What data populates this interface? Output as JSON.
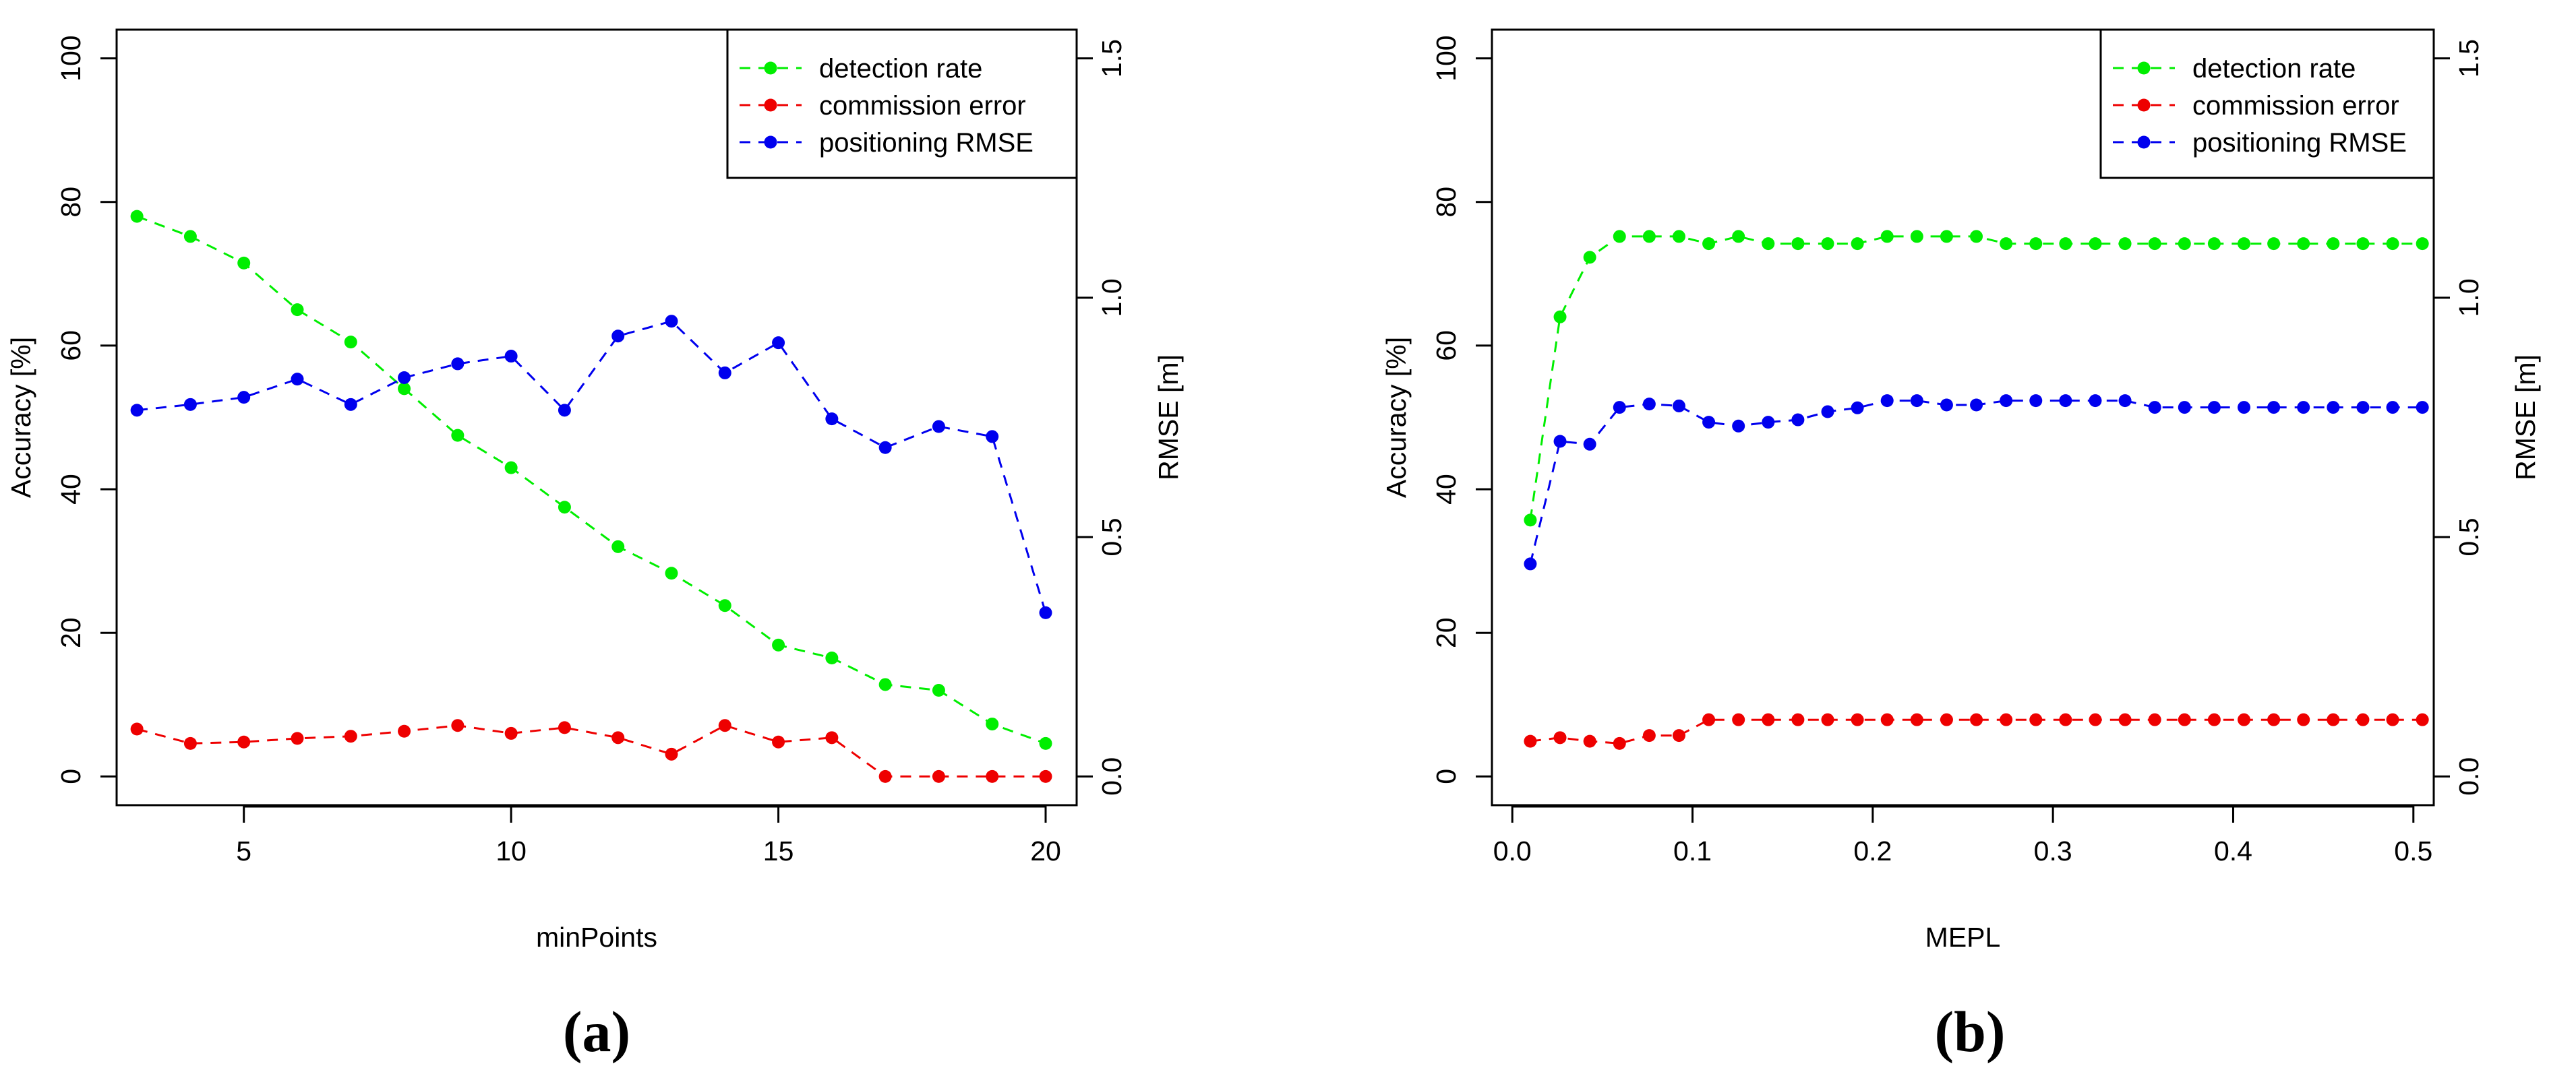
{
  "colors": {
    "detection": "#00ee00",
    "commission": "#ee0000",
    "rmse": "#0000ee"
  },
  "chart_data": [
    {
      "type": "line",
      "panel_label": "(a)",
      "xlabel": "minPoints",
      "ylabel": "Accuracy [%]",
      "y2label": "RMSE [m]",
      "xlim": [
        2.62,
        20.58
      ],
      "ylim": [
        -4,
        104
      ],
      "y2lim": [
        -0.06,
        1.56
      ],
      "xticks": [
        5,
        10,
        15,
        20
      ],
      "xtick_labels": [
        "5",
        "10",
        "15",
        "20"
      ],
      "yticks": [
        0,
        20,
        40,
        60,
        80,
        100
      ],
      "ytick_labels": [
        "0",
        "20",
        "40",
        "60",
        "80",
        "100"
      ],
      "y2ticks": [
        0,
        0.5,
        1,
        1.5
      ],
      "y2tick_labels": [
        "0.0",
        "0.5",
        "1.0",
        "1.5"
      ],
      "legend_position": "top-right",
      "x": [
        3,
        4,
        5,
        6,
        7,
        8,
        9,
        10,
        11,
        12,
        13,
        14,
        15,
        16,
        17,
        18,
        19,
        20
      ],
      "series": [
        {
          "name": "detection rate",
          "axis": "left",
          "color_key": "detection",
          "values": [
            78,
            75.2,
            71.5,
            65,
            60.5,
            54,
            47.5,
            43,
            37.5,
            32,
            28.3,
            23.8,
            18.3,
            16.5,
            12.8,
            12,
            7.3,
            4.6
          ]
        },
        {
          "name": "commission error",
          "axis": "left",
          "color_key": "commission",
          "values": [
            6.6,
            4.6,
            4.8,
            5.3,
            5.6,
            6.3,
            7.1,
            6,
            6.8,
            5.4,
            3.1,
            7.1,
            4.8,
            5.4,
            0,
            0,
            0,
            0
          ]
        },
        {
          "name": "positioning RMSE",
          "axis": "right",
          "color_key": "rmse",
          "values": [
            0.765,
            0.777,
            0.792,
            0.83,
            0.777,
            0.833,
            0.862,
            0.878,
            0.765,
            0.92,
            0.951,
            0.843,
            0.906,
            0.747,
            0.687,
            0.731,
            0.71,
            0.342
          ]
        }
      ]
    },
    {
      "type": "line",
      "panel_label": "(b)",
      "xlabel": "MEPL",
      "ylabel": "Accuracy [%]",
      "y2label": "RMSE [m]",
      "xlim": [
        -0.0113,
        0.5113
      ],
      "ylim": [
        -4,
        104
      ],
      "y2lim": [
        -0.06,
        1.56
      ],
      "xticks": [
        0,
        0.1,
        0.2,
        0.3,
        0.4,
        0.5
      ],
      "xtick_labels": [
        "0.0",
        "0.1",
        "0.2",
        "0.3",
        "0.4",
        "0.5"
      ],
      "yticks": [
        0,
        20,
        40,
        60,
        80,
        100
      ],
      "ytick_labels": [
        "0",
        "20",
        "40",
        "60",
        "80",
        "100"
      ],
      "y2ticks": [
        0,
        0.5,
        1,
        1.5
      ],
      "y2tick_labels": [
        "0.0",
        "0.5",
        "1.0",
        "1.5"
      ],
      "legend_position": "top-right",
      "x": [
        0.01,
        0.0265,
        0.043,
        0.0595,
        0.076,
        0.0925,
        0.109,
        0.1255,
        0.142,
        0.1585,
        0.175,
        0.1915,
        0.208,
        0.2245,
        0.241,
        0.2575,
        0.274,
        0.2905,
        0.307,
        0.3235,
        0.34,
        0.3565,
        0.373,
        0.3895,
        0.406,
        0.4225,
        0.439,
        0.4555,
        0.472,
        0.4885,
        0.505
      ],
      "series": [
        {
          "name": "detection rate",
          "axis": "left",
          "color_key": "detection",
          "values": [
            35.7,
            64,
            72.3,
            75.2,
            75.2,
            75.2,
            74.2,
            75.2,
            74.2,
            74.2,
            74.2,
            74.2,
            75.2,
            75.2,
            75.2,
            75.2,
            74.2,
            74.2,
            74.2,
            74.2,
            74.2,
            74.2,
            74.2,
            74.2,
            74.2,
            74.2,
            74.2,
            74.2,
            74.2,
            74.2,
            74.2
          ]
        },
        {
          "name": "commission error",
          "axis": "left",
          "color_key": "commission",
          "values": [
            4.9,
            5.4,
            4.9,
            4.6,
            5.7,
            5.7,
            7.9,
            7.9,
            7.9,
            7.9,
            7.9,
            7.9,
            7.9,
            7.9,
            7.9,
            7.9,
            7.9,
            7.9,
            7.9,
            7.9,
            7.9,
            7.9,
            7.9,
            7.9,
            7.9,
            7.9,
            7.9,
            7.9,
            7.9,
            7.9,
            7.9
          ]
        },
        {
          "name": "positioning RMSE",
          "axis": "right",
          "color_key": "rmse",
          "values": [
            0.444,
            0.7,
            0.694,
            0.771,
            0.778,
            0.774,
            0.74,
            0.732,
            0.74,
            0.745,
            0.762,
            0.77,
            0.785,
            0.785,
            0.776,
            0.776,
            0.785,
            0.785,
            0.785,
            0.785,
            0.785,
            0.771,
            0.771,
            0.771,
            0.771,
            0.771,
            0.771,
            0.771,
            0.771,
            0.771,
            0.771
          ]
        }
      ]
    }
  ]
}
